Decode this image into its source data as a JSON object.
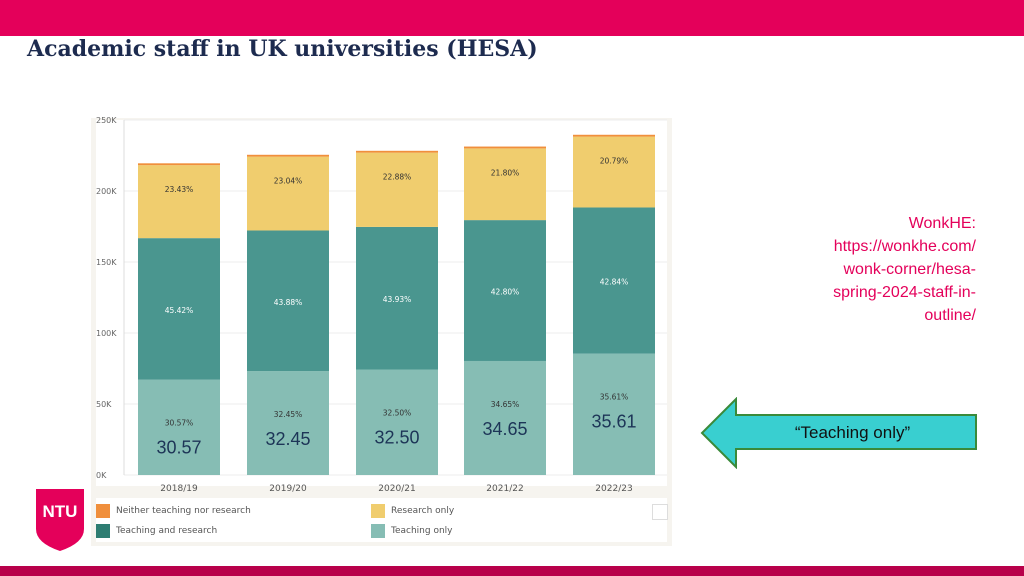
{
  "page": {
    "title": "Academic staff in UK universities (HESA)"
  },
  "source": {
    "lines": [
      "WonkHE:",
      "https://wonkhe.com/",
      "wonk-corner/hesa-",
      "spring-2024-staff-in-",
      "outline/"
    ]
  },
  "callout": {
    "text": "“Teaching only”",
    "color": "#39cfd0"
  },
  "logo": {
    "text": "NTU",
    "color": "#e4005a"
  },
  "chart_data": {
    "type": "bar",
    "stacked": true,
    "categories": [
      "2018/19",
      "2019/20",
      "2020/21",
      "2021/22",
      "2022/23"
    ],
    "y_ticks": [
      "0K",
      "50K",
      "100K",
      "150K",
      "200K",
      "250K"
    ],
    "ylim": [
      0,
      250000
    ],
    "grid": true,
    "legend_position": "bottom",
    "series": [
      {
        "name": "Teaching only",
        "color": "#86bdb4",
        "values": [
          67100,
          73200,
          74300,
          80300,
          85500
        ],
        "labels": [
          "30.57%",
          "32.45%",
          "32.50%",
          "34.65%",
          "35.61%"
        ]
      },
      {
        "name": "Teaching and research",
        "color": "#4a968f",
        "values": [
          99700,
          99000,
          100400,
          99200,
          102900
        ],
        "labels": [
          "45.42%",
          "43.88%",
          "43.93%",
          "42.80%",
          "42.84%"
        ]
      },
      {
        "name": "Research only",
        "color": "#f0cd6e",
        "values": [
          51400,
          52000,
          52300,
          50500,
          49900
        ],
        "labels": [
          "23.43%",
          "23.04%",
          "22.88%",
          "21.80%",
          "20.79%"
        ]
      },
      {
        "name": "Neither teaching nor research",
        "color": "#f08f3c",
        "values": [
          1300,
          1300,
          1300,
          1300,
          1300
        ],
        "labels": []
      }
    ],
    "annotations": [
      "30.57",
      "32.45",
      "32.50",
      "34.65",
      "35.61"
    ],
    "legend": [
      {
        "label": "Neither teaching nor research",
        "color": "#f08f3c"
      },
      {
        "label": "Teaching and research",
        "color": "#2e7d72"
      },
      {
        "label": "Research only",
        "color": "#f0cd6e"
      },
      {
        "label": "Teaching only",
        "color": "#86bdb4"
      }
    ]
  }
}
